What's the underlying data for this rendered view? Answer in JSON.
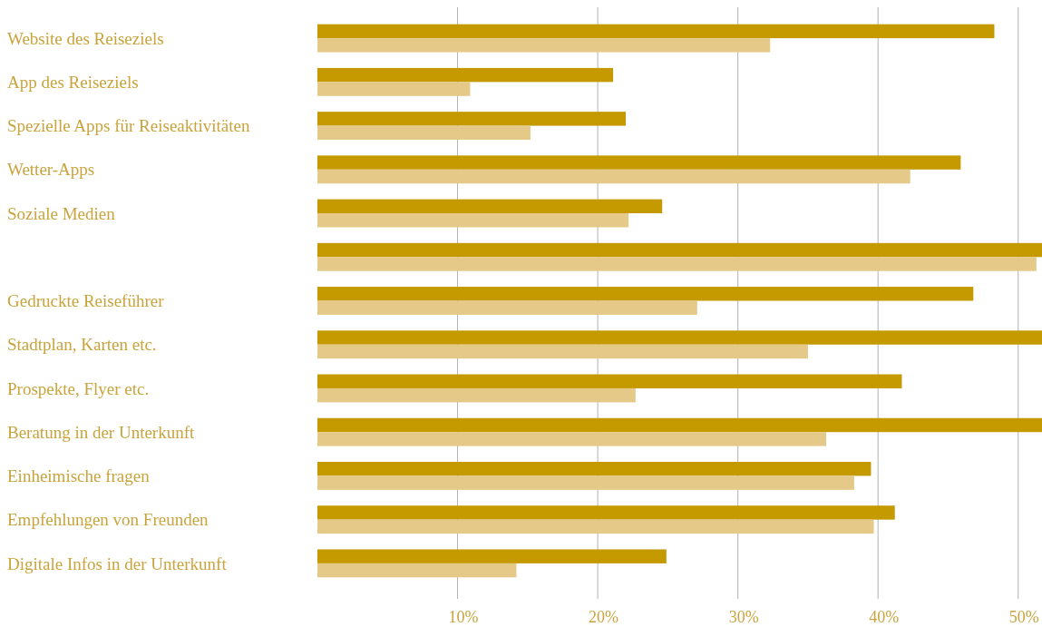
{
  "chart_data": {
    "type": "bar",
    "orientation": "horizontal",
    "categories": [
      "Website des Reiseziels",
      "App des Reiseziels",
      "Spezielle Apps für Reiseaktivitäten",
      "Wetter-Apps",
      "Soziale Medien",
      null,
      "Gedruckte Reiseführer",
      "Stadtplan, Karten etc.",
      "Prospekte, Flyer etc.",
      "Beratung in der Unterkunft",
      "Einheimische fragen",
      "Empfehlungen von Freunden",
      "Digitale Infos in der Unterkunft"
    ],
    "series": [
      {
        "color": "#c49a00",
        "values": [
          48.3,
          21.1,
          22.0,
          45.9,
          24.6,
          51.7,
          46.8,
          51.7,
          41.7,
          51.7,
          39.5,
          41.2,
          24.9
        ]
      },
      {
        "color": "#e5c988",
        "values": [
          32.3,
          10.9,
          15.2,
          42.3,
          22.2,
          51.3,
          27.1,
          35.0,
          22.7,
          36.3,
          38.3,
          39.7,
          14.2
        ]
      }
    ],
    "xlim": [
      0,
      51.7
    ],
    "xticks": [
      {
        "value": 10,
        "label": "10%"
      },
      {
        "value": 20,
        "label": "20%"
      },
      {
        "value": 30,
        "label": "30%"
      },
      {
        "value": 40,
        "label": "40%"
      },
      {
        "value": 50,
        "label": "50%"
      }
    ],
    "grid": "x"
  }
}
